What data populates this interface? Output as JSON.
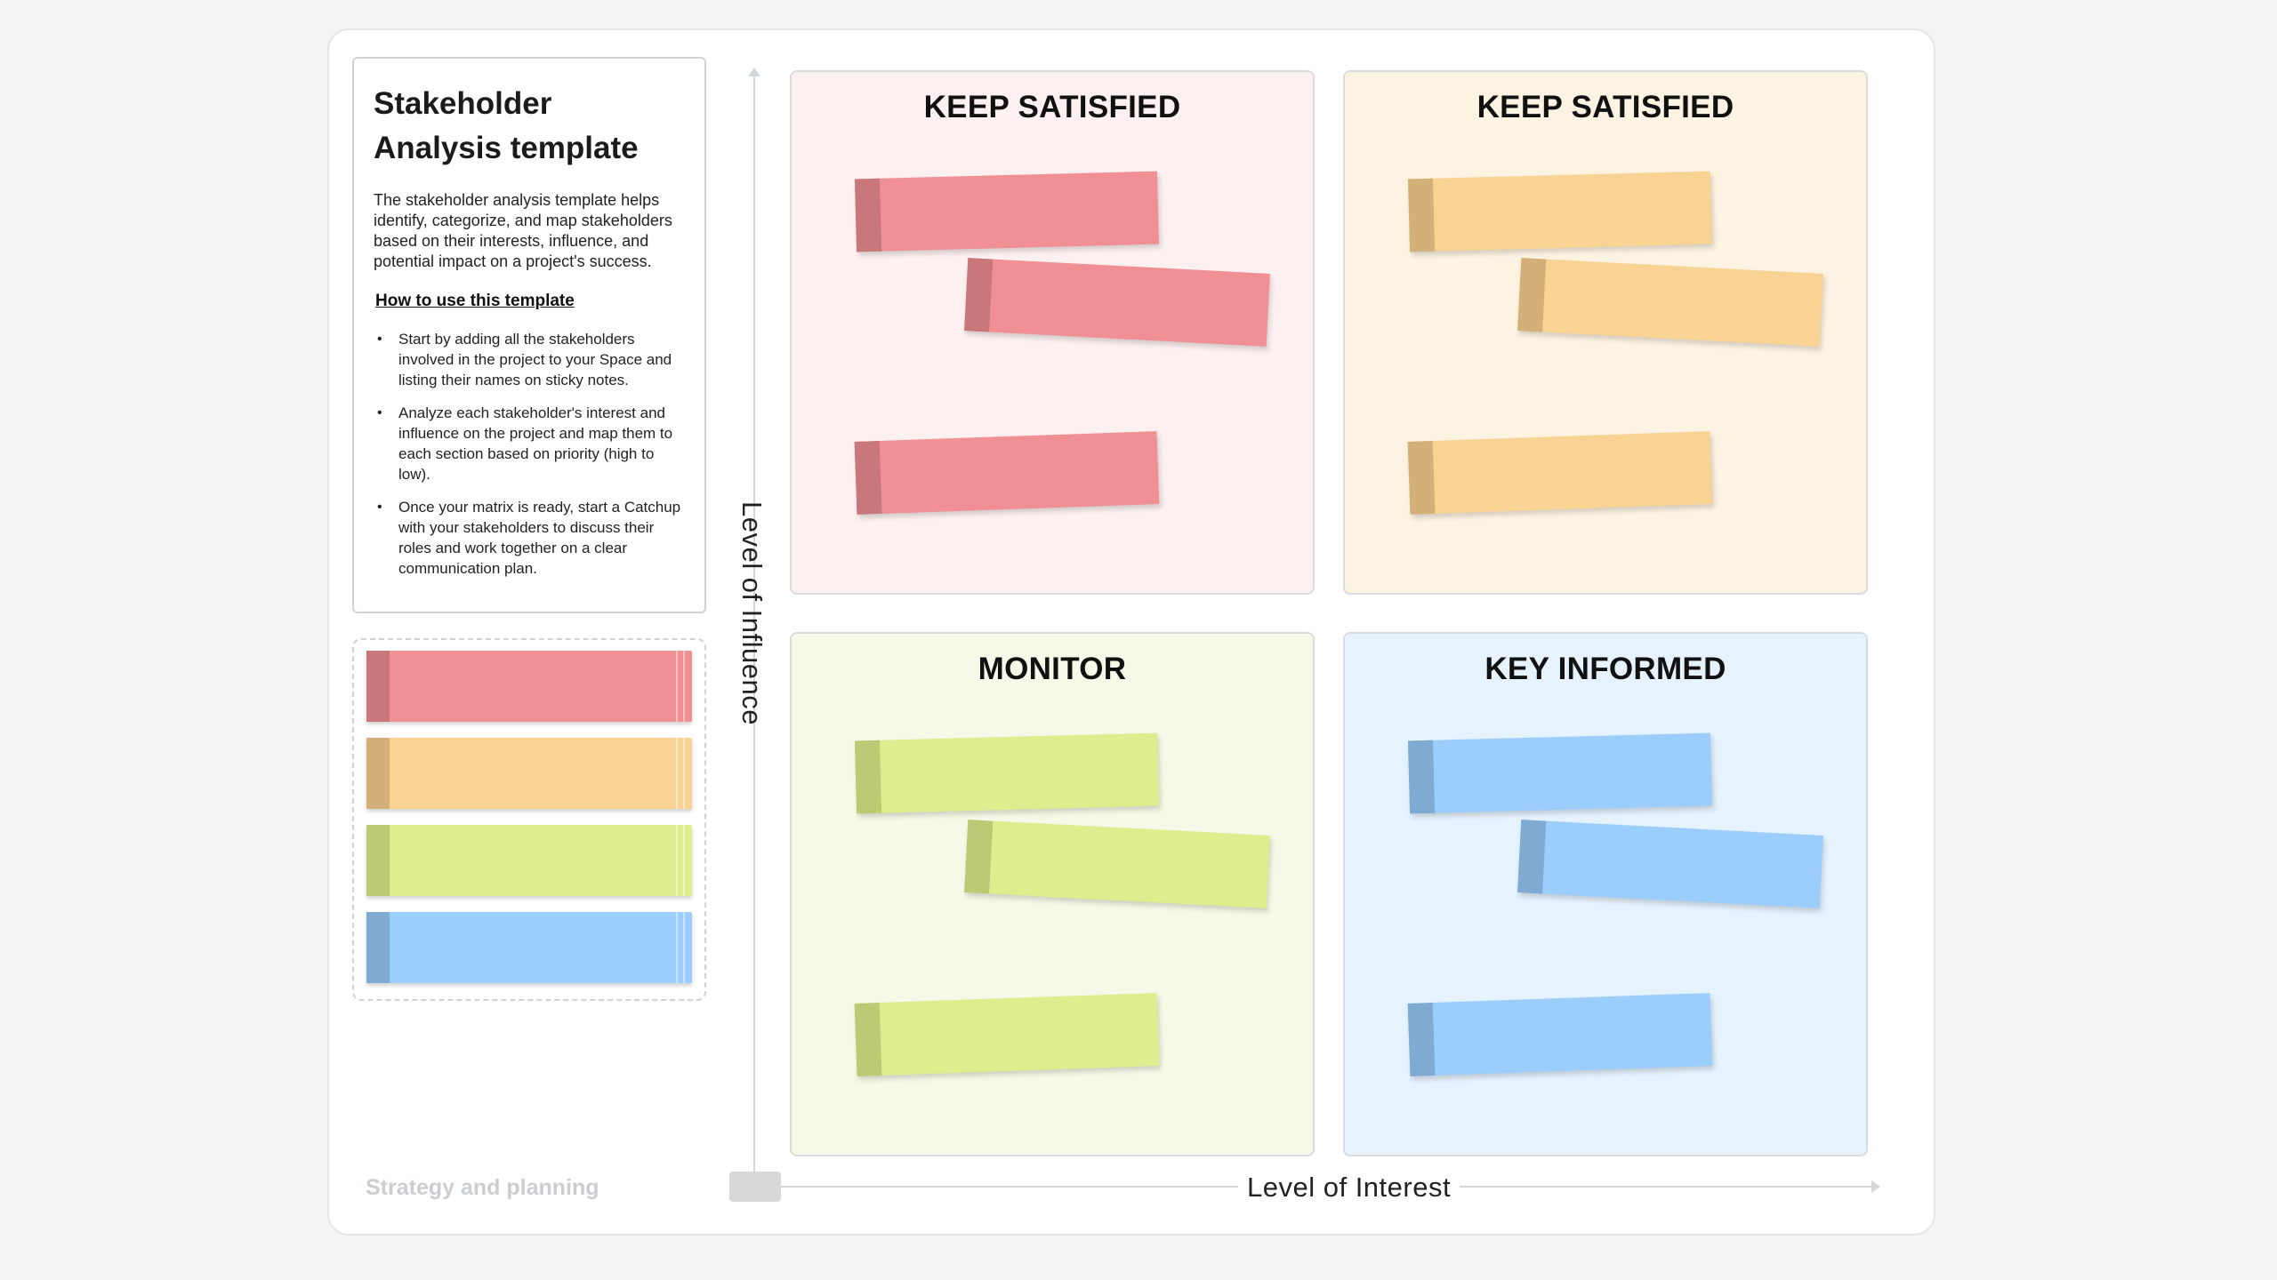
{
  "info": {
    "title": "Stakeholder Analysis template",
    "description": "The stakeholder analysis template helps identify, categorize, and map stakeholders based on their interests, influence, and potential impact on a project's success.",
    "how_to_title": "How to use this template",
    "steps": [
      "Start by adding all the stakeholders involved in the project to your Space and listing their names on sticky notes.",
      "Analyze each stakeholder's interest and influence on the project and map them to each section based on priority (high to low).",
      "Once your matrix is ready, start a Catchup with your stakeholders to discuss their roles and work together on a clear communication plan."
    ]
  },
  "axes": {
    "y_label": "Level of Influence",
    "x_label": "Level of Interest"
  },
  "footer": {
    "label": "Strategy and planning"
  },
  "quadrants": [
    {
      "title": "KEEP SATISFIED",
      "bg": "#fcf0f0",
      "note": "#f08f94",
      "tab": "#c8777b"
    },
    {
      "title": "KEEP SATISFIED",
      "bg": "#fdf3e3",
      "note": "#f8d394",
      "tab": "#d3b078"
    },
    {
      "title": "MONITOR",
      "bg": "#f6f9e7",
      "note": "#deed8e",
      "tab": "#bdca75"
    },
    {
      "title": "KEY INFORMED",
      "bg": "#e6f2fd",
      "note": "#9bcefc",
      "tab": "#7faad2"
    }
  ]
}
